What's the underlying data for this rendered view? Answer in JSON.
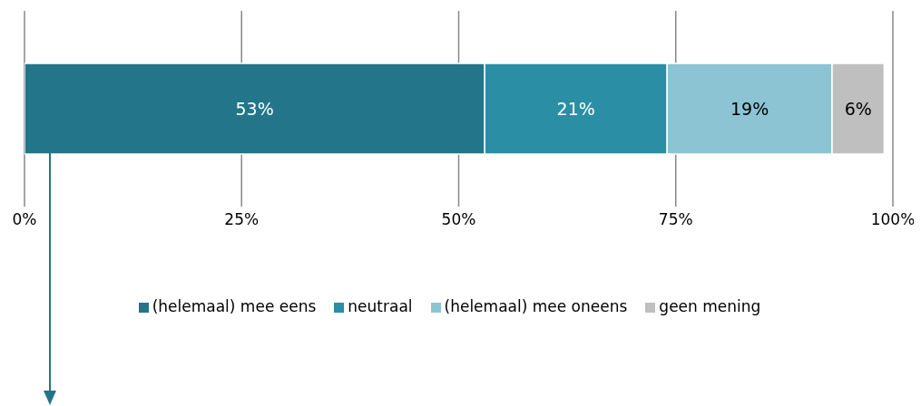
{
  "chart_data": {
    "type": "bar",
    "orientation": "horizontal",
    "stacked": true,
    "categories": [
      null
    ],
    "series": [
      {
        "name": "(helemaal) mee eens",
        "color": "#23758a",
        "values": [
          53
        ],
        "value_labels": [
          "53%"
        ]
      },
      {
        "name": "neutraal",
        "color": "#2a8ea5",
        "values": [
          21
        ],
        "value_labels": [
          "21%"
        ]
      },
      {
        "name": "(helemaal) mee oneens",
        "color": "#8cc4d3",
        "values": [
          19
        ],
        "value_labels": [
          "19%"
        ]
      },
      {
        "name": "geen mening",
        "color": "#bfbfbf",
        "values": [
          6
        ],
        "value_labels": [
          "6%"
        ]
      }
    ],
    "xlim": [
      0,
      100
    ],
    "xticks": [
      {
        "value": 0,
        "label": "0%"
      },
      {
        "value": 25,
        "label": "25%"
      },
      {
        "value": 50,
        "label": "50%"
      },
      {
        "value": 75,
        "label": "75%"
      },
      {
        "value": 100,
        "label": "100%"
      }
    ],
    "grid": "x",
    "legend": "bottom"
  }
}
